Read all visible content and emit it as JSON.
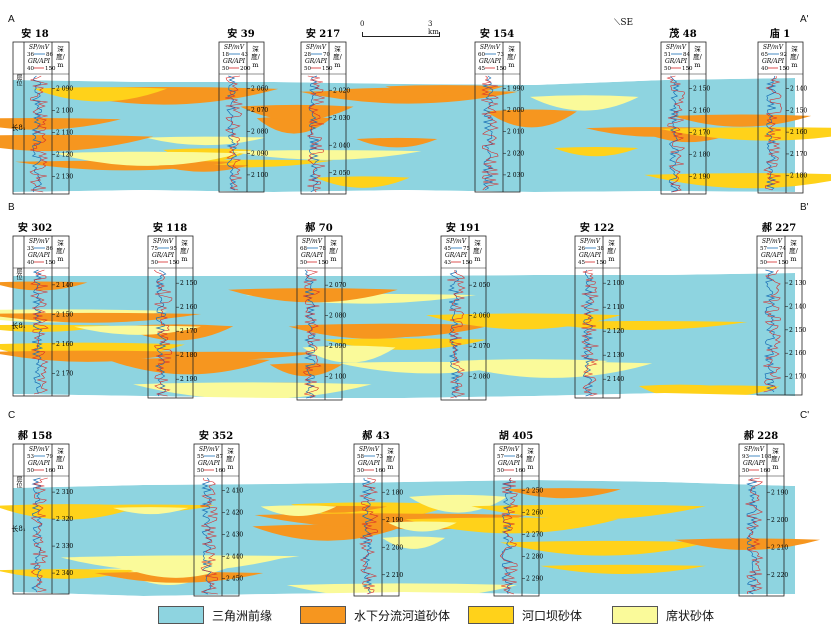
{
  "sections": [
    {
      "start_label": "A",
      "end_label": "A'",
      "wells": [
        {
          "name": "安 18",
          "spv": [
            "36",
            "86"
          ],
          "gr": [
            "40",
            "150"
          ],
          "depths": [
            "2 090",
            "2 100",
            "2 110",
            "2 120",
            "2 130"
          ],
          "layer_top": "长8₁",
          "has_strata_col": true,
          "strata_label": "层位",
          "layer_label": "长8₁"
        },
        {
          "name": "安 39",
          "spv": [
            "18",
            "43"
          ],
          "gr": [
            "50",
            "200"
          ],
          "depths": [
            "2 060",
            "2 070",
            "2 080",
            "2 090",
            "2 100"
          ]
        },
        {
          "name": "安 217",
          "spv": [
            "28",
            "70"
          ],
          "gr": [
            "50",
            "150"
          ],
          "depths": [
            "2 020",
            "2 030",
            "2 040",
            "2 050"
          ]
        },
        {
          "name": "安 154",
          "spv": [
            "60",
            "73"
          ],
          "gr": [
            "45",
            "150"
          ],
          "depths": [
            "1 990",
            "2 000",
            "2 010",
            "2 020",
            "2 030"
          ]
        },
        {
          "name": "茂 48",
          "spv": [
            "51",
            "84"
          ],
          "gr": [
            "50",
            "150"
          ],
          "depths": [
            "2 150",
            "2 160",
            "2 170",
            "2 180",
            "2 190"
          ]
        },
        {
          "name": "庙 1",
          "spv": [
            "65",
            "92"
          ],
          "gr": [
            "40",
            "150"
          ],
          "depths": [
            "2 140",
            "2 150",
            "2 160",
            "2 170",
            "2 180"
          ]
        }
      ]
    },
    {
      "start_label": "B",
      "end_label": "B'",
      "wells": [
        {
          "name": "安 302",
          "spv": [
            "33",
            "86"
          ],
          "gr": [
            "40",
            "150"
          ],
          "depths": [
            "2 140",
            "2 150",
            "2 160",
            "2 170"
          ],
          "has_strata_col": true,
          "strata_label": "层位",
          "layer_label": "长8₁"
        },
        {
          "name": "安 118",
          "spv": [
            "75",
            "95"
          ],
          "gr": [
            "50",
            "150"
          ],
          "depths": [
            "2 150",
            "2 160",
            "2 170",
            "2 180",
            "2 190"
          ]
        },
        {
          "name": "郝 70",
          "spv": [
            "68",
            "78"
          ],
          "gr": [
            "50",
            "150"
          ],
          "depths": [
            "2 070",
            "2 080",
            "2 090",
            "2 100"
          ]
        },
        {
          "name": "安 191",
          "spv": [
            "45",
            "75"
          ],
          "gr": [
            "43",
            "150"
          ],
          "depths": [
            "2 050",
            "2 060",
            "2 070",
            "2 080"
          ]
        },
        {
          "name": "安 122",
          "spv": [
            "26",
            "38"
          ],
          "gr": [
            "45",
            "150"
          ],
          "depths": [
            "2 100",
            "2 110",
            "2 120",
            "2 130",
            "2 140"
          ]
        },
        {
          "name": "郝 227",
          "spv": [
            "57",
            "74"
          ],
          "gr": [
            "50",
            "150"
          ],
          "depths": [
            "2 130",
            "2 140",
            "2 150",
            "2 160",
            "2 170"
          ]
        }
      ]
    },
    {
      "start_label": "C",
      "end_label": "C'",
      "wells": [
        {
          "name": "郝 158",
          "spv": [
            "53",
            "79"
          ],
          "gr": [
            "50",
            "160"
          ],
          "depths": [
            "2 310",
            "2 320",
            "2 330",
            "2 340"
          ],
          "has_strata_col": true,
          "strata_label": "层位",
          "layer_label": "长8₁"
        },
        {
          "name": "安 352",
          "spv": [
            "55",
            "87"
          ],
          "gr": [
            "50",
            "160"
          ],
          "depths": [
            "2 410",
            "2 420",
            "2 430",
            "2 440",
            "2 450"
          ]
        },
        {
          "name": "郝 43",
          "spv": [
            "58",
            "73"
          ],
          "gr": [
            "50",
            "160"
          ],
          "depths": [
            "2 180",
            "2 190",
            "2 200",
            "2 210"
          ]
        },
        {
          "name": "胡 405",
          "spv": [
            "57",
            "84"
          ],
          "gr": [
            "50",
            "160"
          ],
          "depths": [
            "2 250",
            "2 260",
            "2 270",
            "2 280",
            "2 290"
          ]
        },
        {
          "name": "郝 228",
          "spv": [
            "93",
            "108"
          ],
          "gr": [
            "50",
            "160"
          ],
          "depths": [
            "2 190",
            "2 200",
            "2 210",
            "2 220"
          ]
        }
      ]
    }
  ],
  "header": {
    "spv": "SP/mV",
    "gr": "GR/API",
    "depth_line1": "深",
    "depth_line2": "度/",
    "depth_line3": "m"
  },
  "scale": {
    "zero": "0",
    "end": "3 km"
  },
  "direction": "SE",
  "legend": [
    {
      "label": "三角洲前缘",
      "color": "#8ed4e0"
    },
    {
      "label": "水下分流河道砂体",
      "color": "#f6961f"
    },
    {
      "label": "河口坝砂体",
      "color": "#ffd21a"
    },
    {
      "label": "席状砂体",
      "color": "#fafa9a"
    }
  ]
}
